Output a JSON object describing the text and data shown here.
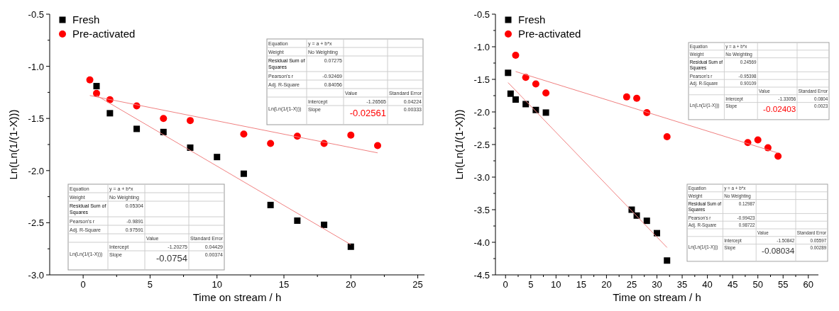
{
  "chart_data": [
    {
      "type": "scatter",
      "xlabel": "Time on stream / h",
      "ylabel": "Ln(Ln(1/(1-X)))",
      "xlim": [
        -2.5,
        25.5
      ],
      "xticks": [
        0,
        5,
        10,
        15,
        20,
        25
      ],
      "ylim": [
        -3.0,
        -0.5
      ],
      "yticks": [
        {
          "value": -3.0,
          "label": "-3.0"
        },
        {
          "value": -2.5,
          "label": "-2.5"
        },
        {
          "value": -2.0,
          "label": "-2.0"
        },
        {
          "value": -1.5,
          "label": "-1.5"
        },
        {
          "value": -1.0,
          "label": "-1.0"
        },
        {
          "value": -0.5,
          "label": "-0.5"
        }
      ],
      "legend": "top left",
      "grid": false,
      "series": [
        {
          "name": "Fresh",
          "color": "#000000",
          "marker": "square",
          "x": [
            1,
            2,
            4,
            6,
            8,
            10,
            12,
            14,
            16,
            18,
            20
          ],
          "values": [
            -1.19,
            -1.45,
            -1.6,
            -1.63,
            -1.78,
            -1.87,
            -2.03,
            -2.33,
            -2.48,
            -2.52,
            -2.73
          ]
        },
        {
          "name": "Pre-activated",
          "color": "#ff0000",
          "marker": "circle",
          "x": [
            0.5,
            1,
            2,
            4,
            6,
            8,
            12,
            14,
            16,
            18,
            20,
            22
          ],
          "values": [
            -1.13,
            -1.26,
            -1.32,
            -1.38,
            -1.5,
            -1.52,
            -1.65,
            -1.74,
            -1.67,
            -1.74,
            -1.66,
            -1.76
          ]
        },
        {
          "type": "line",
          "color": "#f08080",
          "marker": "none",
          "x": [
            1,
            20
          ],
          "values": [
            -1.28,
            -2.71
          ]
        },
        {
          "type": "line",
          "color": "#f08080",
          "marker": "none",
          "x": [
            0.5,
            22
          ],
          "values": [
            -1.28,
            -1.83
          ]
        }
      ],
      "annotations": [
        "Equation",
        "y = a + b*x",
        "Weight",
        "No Weighting",
        "Residual Sum of Squares",
        "0.07275",
        "Pearson's r",
        "-0.92469",
        "Adj. R-Square",
        "0.84056",
        "Value",
        "Standard Error",
        "Ln(Ln(1/(1-X)))",
        "Intercept",
        "-1.26565",
        "0.04224",
        "Slope",
        "-0.02561",
        "0.00333",
        "Equation",
        "y = a + b*x",
        "Weight",
        "No Weighting",
        "Residual Sum of Squares",
        "0.05304",
        "Pearson's r",
        "-0.9891",
        "Adj. R-Square",
        "0.97591",
        "Value",
        "Standard Error",
        "Ln(Ln(1/(1-X)))",
        "Intercept",
        "-1.20275",
        "0.04429",
        "Slope",
        "-0.0754",
        "0.00374"
      ]
    },
    {
      "type": "scatter",
      "xlabel": "Time on stream / h",
      "ylabel": "Ln(Ln(1/(1-X)))",
      "xlim": [
        -2,
        62
      ],
      "xticks": [
        0,
        5,
        10,
        15,
        20,
        25,
        30,
        35,
        40,
        45,
        50,
        55,
        60
      ],
      "ylim": [
        -4.5,
        -0.5
      ],
      "yticks": [
        {
          "value": -4.5,
          "label": "-4.5"
        },
        {
          "value": -4.0,
          "label": "-4.0"
        },
        {
          "value": -3.5,
          "label": "-3.5"
        },
        {
          "value": -3.0,
          "label": "-3.0"
        },
        {
          "value": -2.5,
          "label": "-2.5"
        },
        {
          "value": -2.0,
          "label": "-2.0"
        },
        {
          "value": -1.5,
          "label": "-1.5"
        },
        {
          "value": -1.0,
          "label": "-1.0"
        },
        {
          "value": -0.5,
          "label": "-0.5"
        }
      ],
      "legend": "top left",
      "grid": false,
      "series": [
        {
          "name": "Fresh",
          "color": "#000000",
          "marker": "square",
          "x": [
            0.5,
            1,
            2,
            4,
            6,
            8,
            25,
            26,
            28,
            30,
            32
          ],
          "values": [
            -1.4,
            -1.72,
            -1.81,
            -1.88,
            -1.97,
            -2.01,
            -3.5,
            -3.59,
            -3.67,
            -3.86,
            -4.28
          ]
        },
        {
          "name": "Pre-activated",
          "color": "#ff0000",
          "marker": "circle",
          "x": [
            2,
            4,
            6,
            8,
            24,
            26,
            28,
            32,
            48,
            50,
            52,
            54
          ],
          "values": [
            -1.13,
            -1.47,
            -1.57,
            -1.71,
            -1.77,
            -1.79,
            -2.01,
            -2.38,
            -2.47,
            -2.43,
            -2.55,
            -2.68
          ]
        },
        {
          "type": "line",
          "color": "#f08080",
          "marker": "none",
          "x": [
            0.5,
            32
          ],
          "values": [
            -1.55,
            -4.08
          ]
        },
        {
          "type": "line",
          "color": "#f08080",
          "marker": "none",
          "x": [
            2,
            54
          ],
          "values": [
            -1.38,
            -2.63
          ]
        }
      ],
      "annotations": [
        "Equation",
        "y = a + b*x",
        "Weight",
        "No Weighting",
        "Residual Sum of Squares",
        "0.24569",
        "Pearson's r",
        "-0.95398",
        "Adj. R-Square",
        "0.90109",
        "Value",
        "Standard Error",
        "Ln(Ln(1/(1-X)))",
        "Intercept",
        "-1.33056",
        "0.0804",
        "Slope",
        "-0.02403",
        "0.0023",
        "Equation",
        "y = a + b*x",
        "Weight",
        "No Weighting",
        "Residual Sum of Squares",
        "0.12987",
        "Pearson's r",
        "-0.99423",
        "Adj. R-Square",
        "0.98722",
        "Value",
        "Standard Error",
        "Ln(Ln(1/(1-X)))",
        "Intercept",
        "-1.50842",
        "0.05597",
        "Slope",
        "-0.08034",
        "0.00289"
      ]
    }
  ]
}
